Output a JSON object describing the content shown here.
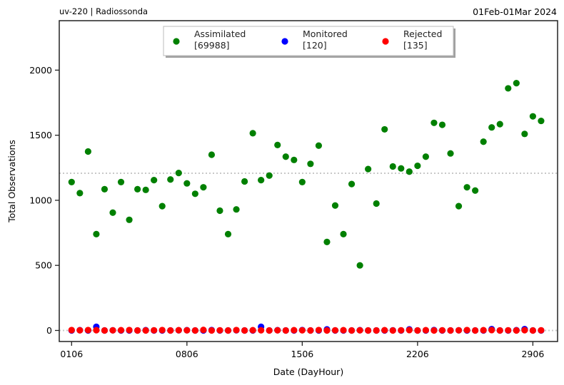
{
  "header": {
    "left": "uv-220  |  Radiossonda",
    "right": "01Feb-01Mar 2024"
  },
  "chart_data": {
    "type": "scatter",
    "xlabel": "Date (DayHour)",
    "ylabel": "Total Observations",
    "x_ticks": [
      {
        "label": "0106",
        "x": 0
      },
      {
        "label": "0806",
        "x": 28
      },
      {
        "label": "1506",
        "x": 56
      },
      {
        "label": "2206",
        "x": 84
      },
      {
        "label": "2906",
        "x": 112
      }
    ],
    "xlim": [
      -3,
      118
    ],
    "ylim": [
      -85,
      2380
    ],
    "y_ticks": [
      0,
      500,
      1000,
      1500,
      2000
    ],
    "reference_line_y": 1208,
    "grid": false,
    "legend_position": "top-center",
    "series": [
      {
        "name": "Assimilated",
        "count": "[69988]",
        "color": "#008000",
        "x": [
          0,
          2,
          4,
          6,
          8,
          10,
          12,
          14,
          16,
          18,
          20,
          22,
          24,
          26,
          28,
          30,
          32,
          34,
          36,
          38,
          40,
          42,
          44,
          46,
          48,
          50,
          52,
          54,
          56,
          58,
          60,
          62,
          64,
          66,
          68,
          70,
          72,
          74,
          76,
          78,
          80,
          82,
          84,
          86,
          88,
          90,
          92,
          94,
          96,
          98,
          100,
          102,
          104,
          106,
          108,
          110,
          112,
          114
        ],
        "y": [
          1140,
          1055,
          1375,
          740,
          1085,
          905,
          1140,
          850,
          1085,
          1080,
          1155,
          955,
          1160,
          1210,
          1130,
          1050,
          1100,
          1350,
          920,
          740,
          930,
          1145,
          1515,
          1155,
          1190,
          1425,
          1335,
          1310,
          1140,
          1280,
          1420,
          680,
          960,
          740,
          1125,
          500,
          1240,
          975,
          1545,
          1260,
          1245,
          1220,
          1265,
          1335,
          1595,
          1580,
          1360,
          955,
          1100,
          1075,
          1450,
          1560,
          1585,
          1860,
          1900,
          1510,
          1645,
          1610
        ]
      },
      {
        "name": "Monitored",
        "count": "[120]",
        "color": "#0000ff",
        "x": [
          0,
          2,
          4,
          6,
          8,
          10,
          12,
          14,
          16,
          18,
          20,
          22,
          24,
          26,
          28,
          30,
          32,
          34,
          36,
          38,
          40,
          42,
          44,
          46,
          48,
          50,
          52,
          54,
          56,
          58,
          60,
          62,
          64,
          66,
          68,
          70,
          72,
          74,
          76,
          78,
          80,
          82,
          84,
          86,
          88,
          90,
          92,
          94,
          96,
          98,
          100,
          102,
          104,
          106,
          108,
          110,
          112,
          114
        ],
        "y": [
          0,
          2,
          0,
          28,
          0,
          1,
          0,
          0,
          0,
          2,
          0,
          0,
          0,
          1,
          2,
          0,
          0,
          3,
          0,
          0,
          1,
          0,
          0,
          28,
          0,
          2,
          0,
          0,
          3,
          0,
          0,
          8,
          0,
          0,
          0,
          2,
          0,
          0,
          0,
          1,
          0,
          8,
          0,
          0,
          3,
          0,
          0,
          1,
          0,
          0,
          0,
          10,
          0,
          0,
          2,
          10,
          0,
          0
        ]
      },
      {
        "name": "Rejected",
        "count": "[135]",
        "color": "#ff0000",
        "x": [
          0,
          2,
          4,
          6,
          8,
          10,
          12,
          14,
          16,
          18,
          20,
          22,
          24,
          26,
          28,
          30,
          32,
          34,
          36,
          38,
          40,
          42,
          44,
          46,
          48,
          50,
          52,
          54,
          56,
          58,
          60,
          62,
          64,
          66,
          68,
          70,
          72,
          74,
          76,
          78,
          80,
          82,
          84,
          86,
          88,
          90,
          92,
          94,
          96,
          98,
          100,
          102,
          104,
          106,
          108,
          110,
          112,
          114
        ],
        "y": [
          3,
          1,
          3,
          2,
          0,
          1,
          2,
          3,
          0,
          0,
          1,
          3,
          0,
          2,
          1,
          0,
          4,
          0,
          1,
          0,
          3,
          0,
          2,
          1,
          0,
          1,
          0,
          2,
          1,
          0,
          3,
          0,
          1,
          2,
          0,
          1,
          0,
          0,
          2,
          0,
          1,
          3,
          0,
          2,
          0,
          1,
          0,
          1,
          3,
          0,
          2,
          3,
          0,
          1,
          0,
          2,
          0,
          1
        ]
      }
    ]
  }
}
